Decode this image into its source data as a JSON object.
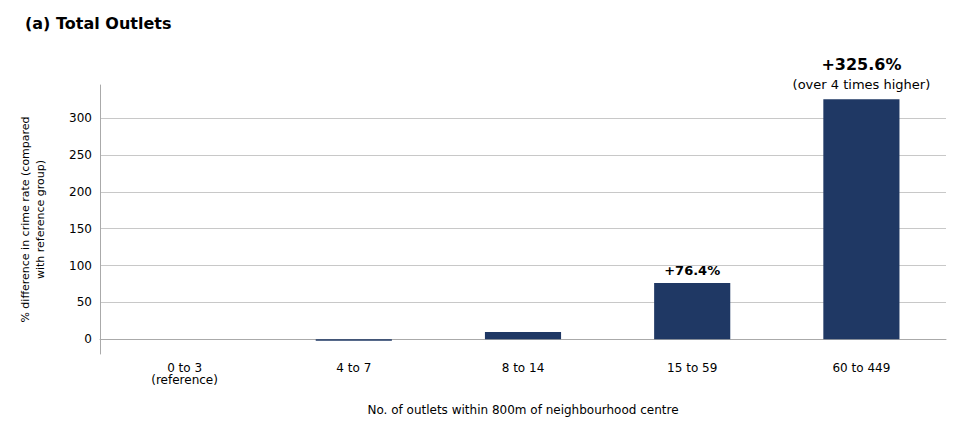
{
  "chart_data": {
    "type": "bar",
    "title": "(a) Total Outlets",
    "categories": [
      "0 to 3\n(reference)",
      "4 to 7",
      "8 to 14",
      "15 to 59",
      "60 to 449"
    ],
    "values": [
      0,
      -2,
      10,
      76.4,
      325.6
    ],
    "color": "#1f3864",
    "xlabel": "No. of outlets within 800m of neighbourhood centre",
    "ylabel": "% difference in crime rate (compared\nwith reference group)",
    "ylim": [
      -20,
      345
    ],
    "yticks": [
      0,
      50,
      100,
      150,
      200,
      250,
      300
    ],
    "grid": true,
    "annotations": [
      {
        "text": "+76.4%",
        "category": "15 to 59"
      },
      {
        "text": "+325.6%",
        "category": "60 to 449"
      },
      {
        "text": "(over 4 times higher)",
        "category": "60 to 449"
      }
    ]
  }
}
